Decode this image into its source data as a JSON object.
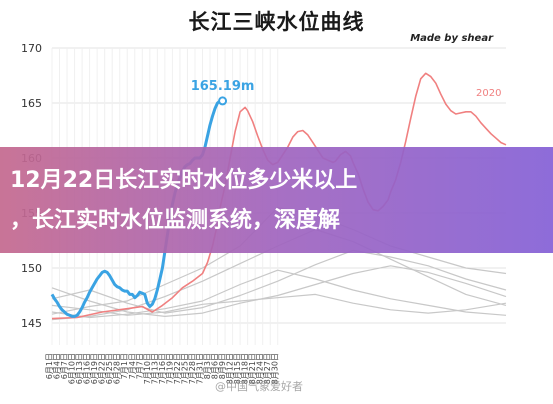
{
  "chart_data": {
    "type": "line",
    "title": "长江三峡水位曲线",
    "credit": "Made by shear",
    "xlabel": "",
    "ylabel": "",
    "ylim": [
      143,
      170
    ],
    "yticks": [
      145,
      150,
      155,
      160,
      165,
      170
    ],
    "grid": true,
    "categories": [
      "6月1日",
      "6月4日",
      "6月7日",
      "6月10日",
      "6月13日",
      "6月16日",
      "6月19日",
      "6月22日",
      "6月25日",
      "6月28日",
      "7月1日",
      "7月4日",
      "7月7日",
      "7月10日",
      "7月13日",
      "7月16日",
      "7月19日",
      "7月22日",
      "7月25日",
      "7月28日",
      "7月31日",
      "8月3日",
      "8月6日",
      "8月9日",
      "8月12日",
      "8月15日",
      "8月18日",
      "8月21日",
      "8月24日",
      "8月27日",
      "8月30日"
    ],
    "series": [
      {
        "name": "",
        "color": "#3aa3e3",
        "annotation": "165.19m",
        "x": [
          0,
          1,
          2,
          3,
          4,
          5,
          6,
          7,
          8,
          9,
          10,
          11,
          12,
          13,
          14,
          15,
          16,
          17,
          18,
          19,
          20,
          21,
          22,
          23,
          24,
          25,
          26,
          27,
          28,
          29,
          30,
          31,
          32,
          33,
          34,
          35,
          36,
          37,
          38,
          39,
          40,
          41,
          42,
          43,
          44,
          45,
          46,
          47,
          48,
          49,
          50,
          51,
          52,
          53,
          54,
          55,
          56,
          57,
          58,
          59,
          60,
          61,
          62,
          63,
          64,
          65,
          66,
          67,
          68
        ],
        "y": [
          147.6,
          147.2,
          146.9,
          146.5,
          146.2,
          146.0,
          145.8,
          145.7,
          145.6,
          145.6,
          145.7,
          146.0,
          146.4,
          146.9,
          147.3,
          147.8,
          148.2,
          148.6,
          149.0,
          149.3,
          149.6,
          149.7,
          149.6,
          149.3,
          148.9,
          148.5,
          148.3,
          148.2,
          148.0,
          147.9,
          147.9,
          147.6,
          147.6,
          147.3,
          147.5,
          147.8,
          147.7,
          147.6,
          146.8,
          146.5,
          146.7,
          147.2,
          148.0,
          149.0,
          150.0,
          151.5,
          153.0,
          154.5,
          155.8,
          156.8,
          157.6,
          158.2,
          158.8,
          159.2,
          159.4,
          159.5,
          159.8,
          160.0,
          160.0,
          160.0,
          160.3,
          161.0,
          162.0,
          163.0,
          163.8,
          164.5,
          165.0,
          165.19,
          165.19
        ]
      },
      {
        "name": "2020",
        "color": "#f08080",
        "x": [
          0,
          10,
          20,
          30,
          36,
          40,
          44,
          48,
          52,
          56,
          60,
          62,
          64,
          66,
          67,
          69,
          71,
          73,
          75,
          77,
          78,
          80,
          82,
          84,
          86,
          88,
          90,
          92,
          94,
          96,
          98,
          100,
          102,
          104,
          106,
          108,
          110,
          112,
          113,
          115,
          117,
          119,
          120,
          122,
          124,
          126,
          128,
          130,
          132,
          134,
          135,
          137,
          139,
          141,
          143,
          145,
          147,
          149,
          151,
          153,
          155,
          157,
          159,
          161,
          163,
          165,
          167,
          169,
          171,
          173,
          175,
          177,
          179,
          181
        ],
        "y": [
          145.4,
          145.5,
          146.0,
          146.3,
          146.5,
          146.0,
          146.6,
          147.3,
          148.2,
          148.8,
          149.5,
          150.5,
          152.0,
          154.0,
          155.5,
          157.5,
          160.0,
          162.4,
          164.2,
          164.6,
          164.3,
          163.3,
          162.0,
          160.8,
          159.8,
          159.4,
          159.6,
          160.3,
          161.0,
          161.9,
          162.4,
          162.5,
          162.1,
          161.4,
          160.7,
          160.0,
          159.8,
          159.6,
          159.7,
          160.3,
          160.6,
          160.2,
          159.6,
          158.6,
          157.2,
          156.0,
          155.3,
          155.2,
          155.6,
          156.2,
          156.9,
          158.0,
          159.6,
          161.5,
          163.6,
          165.6,
          167.2,
          167.7,
          167.4,
          166.8,
          165.8,
          164.9,
          164.3,
          164.0,
          164.1,
          164.2,
          164.2,
          163.8,
          163.2,
          162.7,
          162.2,
          161.8,
          161.4,
          161.2
        ]
      },
      {
        "name": "",
        "color": "#c8c8c8",
        "x": [
          0,
          15,
          30,
          45,
          60,
          75,
          90,
          105,
          120,
          135,
          150,
          165,
          181
        ],
        "y": [
          145.8,
          146.5,
          147.0,
          148.5,
          150.0,
          152.0,
          155.5,
          154.8,
          153.5,
          152.0,
          151.0,
          150.0,
          149.5
        ]
      },
      {
        "name": "",
        "color": "#c8c8c8",
        "x": [
          0,
          15,
          30,
          45,
          60,
          75,
          90,
          105,
          120,
          135,
          150,
          165,
          181
        ],
        "y": [
          147.2,
          148.0,
          146.8,
          145.9,
          146.4,
          147.5,
          148.8,
          150.3,
          151.6,
          151.0,
          150.2,
          149.0,
          148.0
        ]
      },
      {
        "name": "",
        "color": "#c8c8c8",
        "x": [
          0,
          15,
          30,
          45,
          60,
          75,
          90,
          105,
          120,
          135,
          150,
          165,
          181
        ],
        "y": [
          146.0,
          145.5,
          145.8,
          146.3,
          147.0,
          148.5,
          149.8,
          149.0,
          148.0,
          147.2,
          146.6,
          146.0,
          145.7
        ]
      },
      {
        "name": "",
        "color": "#c8c8c8",
        "x": [
          0,
          15,
          30,
          45,
          60,
          75,
          90,
          105,
          120,
          135,
          150,
          165,
          181
        ],
        "y": [
          148.2,
          147.0,
          146.0,
          145.6,
          145.9,
          146.8,
          147.5,
          148.5,
          149.5,
          150.2,
          149.6,
          148.6,
          147.4
        ]
      },
      {
        "name": "",
        "color": "#c8c8c8",
        "x": [
          0,
          15,
          30,
          45,
          60,
          75,
          90,
          105,
          120,
          135,
          150,
          165,
          181
        ],
        "y": [
          145.3,
          145.6,
          146.2,
          147.4,
          148.8,
          150.4,
          152.0,
          153.5,
          152.4,
          150.8,
          149.2,
          147.6,
          146.6
        ]
      },
      {
        "name": "",
        "color": "#c8c8c8",
        "x": [
          0,
          15,
          30,
          45,
          60,
          75,
          90,
          105,
          120,
          135,
          150,
          165,
          181
        ],
        "y": [
          146.6,
          146.2,
          145.7,
          146.0,
          146.7,
          147.0,
          147.3,
          147.6,
          146.8,
          146.2,
          145.9,
          146.2,
          146.8
        ]
      }
    ]
  },
  "overlay": {
    "headline_line1": "12月22日长江实时水位多少米以上",
    "headline_line2": "，长江实时水位监测系统，深度解",
    "watermark": "@中国气象爱好者"
  }
}
